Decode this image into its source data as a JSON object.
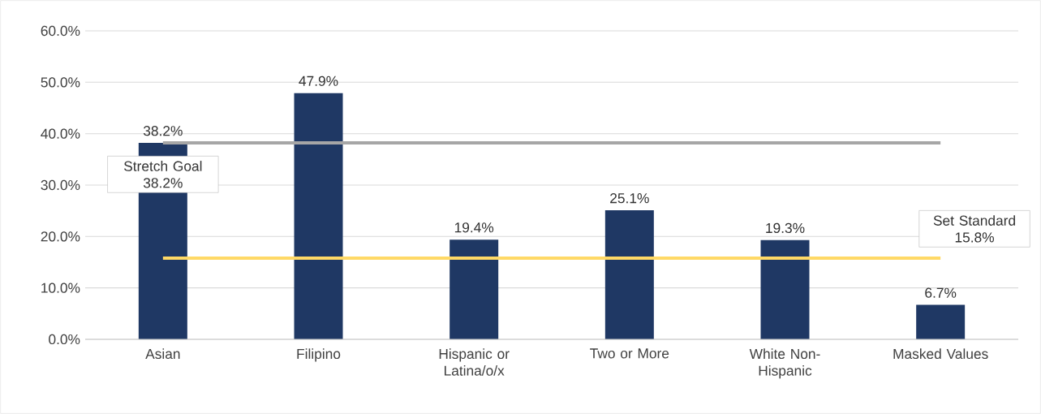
{
  "chart_data": {
    "type": "bar",
    "categories": [
      "Asian",
      "Filipino",
      "Hispanic or Latina/o/x",
      "Two or More",
      "White Non-Hispanic",
      "Masked Values"
    ],
    "values": [
      38.2,
      47.9,
      19.4,
      25.1,
      19.3,
      6.7
    ],
    "value_labels": [
      "38.2%",
      "47.9%",
      "19.4%",
      "25.1%",
      "19.3%",
      "6.7%"
    ],
    "color": "#1f3864",
    "ylim": [
      0,
      60
    ],
    "yticks": [
      {
        "value": 0,
        "label": "0.0%"
      },
      {
        "value": 10,
        "label": "10.0%"
      },
      {
        "value": 20,
        "label": "20.0%"
      },
      {
        "value": 30,
        "label": "30.0%"
      },
      {
        "value": 40,
        "label": "40.0%"
      },
      {
        "value": 50,
        "label": "50.0%"
      },
      {
        "value": 60,
        "label": "60.0%"
      }
    ],
    "grid": "y",
    "ref_lines": [
      {
        "axis": "y",
        "value": 38.2,
        "label": "Stretch Goal 38.2%",
        "color": "#a6a6a6"
      },
      {
        "axis": "y",
        "value": 15.8,
        "label": "Set Standard 15.8%",
        "color": "#ffd966"
      }
    ]
  }
}
